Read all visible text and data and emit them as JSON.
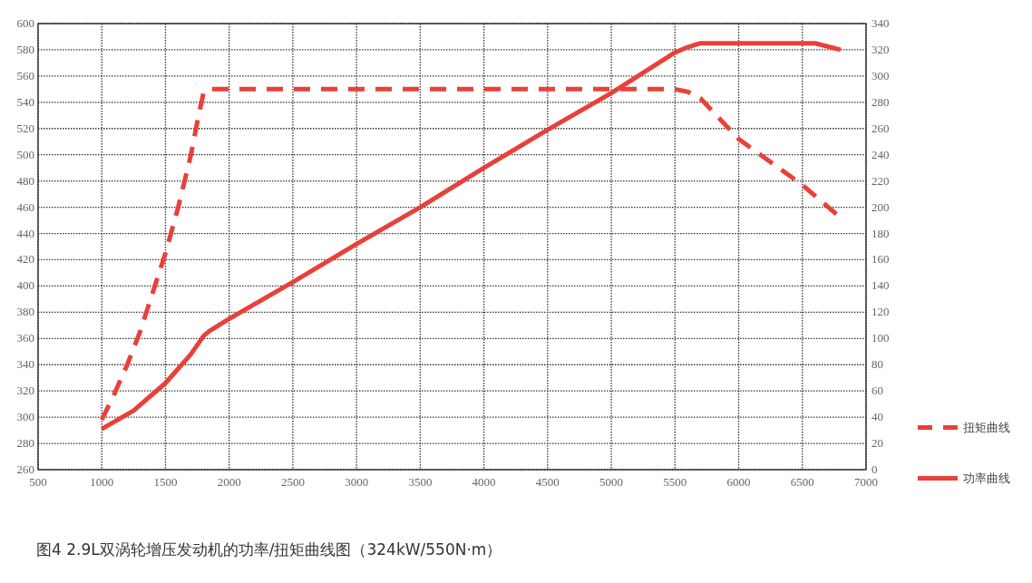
{
  "chart_data": {
    "type": "line",
    "title": "图4  2.9L双涡轮增压发动机的功率/扭矩曲线图（324kW/550N·m）",
    "xlim": [
      500,
      7000
    ],
    "xticks": [
      500,
      1000,
      1500,
      2000,
      2500,
      3000,
      3500,
      4000,
      4500,
      5000,
      5500,
      6000,
      6500,
      7000
    ],
    "ylim": [
      260,
      600
    ],
    "yticks": [
      260,
      280,
      300,
      320,
      340,
      360,
      380,
      400,
      420,
      440,
      460,
      480,
      500,
      520,
      540,
      560,
      580,
      600
    ],
    "y2lim": [
      0,
      340
    ],
    "y2ticks": [
      0,
      20,
      40,
      60,
      80,
      100,
      120,
      140,
      160,
      180,
      200,
      220,
      240,
      260,
      280,
      300,
      320,
      340
    ],
    "grid": true,
    "legend": "bottom right",
    "series": [
      {
        "name": "扭矩曲线",
        "color": "#e8413a",
        "line_style": "dashed",
        "axis": "y",
        "x": [
          1000,
          1100,
          1200,
          1300,
          1400,
          1500,
          1600,
          1700,
          1750,
          1800,
          1850,
          5500,
          5600,
          5700,
          6000,
          6500,
          6800
        ],
        "values": [
          298,
          318,
          340,
          365,
          395,
          425,
          460,
          500,
          525,
          548,
          550,
          550,
          548,
          543,
          512,
          477,
          452
        ]
      },
      {
        "name": "功率曲线",
        "color": "#e8413a",
        "line_style": "solid",
        "axis": "y2",
        "x": [
          1000,
          1250,
          1500,
          1700,
          1800,
          1850,
          2000,
          2500,
          3000,
          3500,
          4000,
          4500,
          5000,
          5500,
          5600,
          5700,
          6600,
          6800
        ],
        "values": [
          31,
          45,
          66,
          88,
          102,
          106,
          115,
          143,
          172,
          200,
          230,
          259,
          287,
          318,
          322,
          325,
          325,
          320
        ]
      }
    ]
  }
}
